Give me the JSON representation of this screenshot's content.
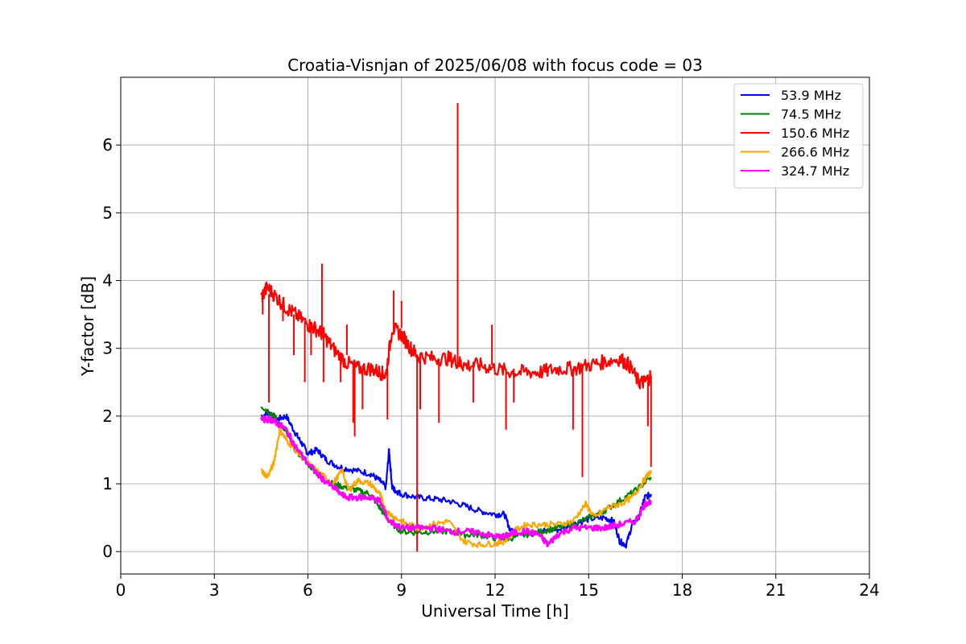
{
  "chart_data": {
    "type": "line",
    "title": "Croatia-Visnjan of 2025/06/08 with focus code = 03",
    "xlabel": "Universal Time [h]",
    "ylabel": "Y-factor [dB]",
    "xlim": [
      0,
      24
    ],
    "ylim": [
      -0.33,
      7.0
    ],
    "xticks": [
      0,
      3,
      6,
      9,
      12,
      15,
      18,
      21,
      24
    ],
    "yticks": [
      0,
      1,
      2,
      3,
      4,
      5,
      6
    ],
    "grid": true,
    "legend_position": "top-right",
    "series": [
      {
        "name": " 53.9 MHz",
        "color": "#0000ff",
        "x": [
          4.5,
          4.8,
          5.0,
          5.3,
          5.6,
          5.8,
          6.0,
          6.3,
          6.6,
          7.0,
          7.5,
          8.0,
          8.3,
          8.5,
          8.6,
          8.7,
          8.8,
          9.0,
          9.5,
          10.0,
          10.5,
          11.0,
          11.5,
          12.0,
          12.3,
          12.5,
          13.0,
          13.5,
          14.0,
          14.5,
          15.0,
          15.5,
          15.8,
          16.0,
          16.2,
          16.4,
          16.6,
          16.8,
          17.0
        ],
        "y": [
          2.0,
          2.05,
          1.95,
          2.0,
          1.75,
          1.6,
          1.45,
          1.5,
          1.35,
          1.25,
          1.2,
          1.15,
          1.05,
          0.95,
          1.5,
          0.95,
          0.9,
          0.85,
          0.8,
          0.78,
          0.75,
          0.68,
          0.6,
          0.55,
          0.55,
          0.3,
          0.28,
          0.3,
          0.32,
          0.4,
          0.48,
          0.5,
          0.45,
          0.15,
          0.1,
          0.4,
          0.5,
          0.8,
          0.85
        ]
      },
      {
        "name": " 74.5 MHz",
        "color": "#008000",
        "x": [
          4.5,
          4.8,
          5.0,
          5.3,
          5.6,
          6.0,
          6.4,
          6.8,
          7.2,
          7.6,
          8.0,
          8.3,
          8.6,
          9.0,
          9.5,
          10.0,
          10.5,
          11.0,
          11.5,
          12.0,
          12.5,
          13.0,
          13.5,
          14.0,
          14.5,
          15.0,
          15.5,
          16.0,
          16.5,
          17.0
        ],
        "y": [
          2.15,
          2.05,
          1.95,
          1.75,
          1.5,
          1.3,
          1.1,
          1.0,
          0.95,
          0.9,
          0.85,
          0.65,
          0.45,
          0.3,
          0.28,
          0.3,
          0.3,
          0.25,
          0.25,
          0.2,
          0.2,
          0.25,
          0.3,
          0.35,
          0.4,
          0.5,
          0.6,
          0.75,
          0.9,
          1.1
        ]
      },
      {
        "name": " 150.6 MHz",
        "color": "#ff0000",
        "x": [
          4.5,
          4.7,
          5.0,
          5.3,
          5.6,
          6.0,
          6.2,
          6.5,
          6.8,
          7.2,
          7.6,
          8.0,
          8.3,
          8.5,
          8.7,
          9.0,
          9.3,
          9.5,
          10.0,
          10.5,
          10.8,
          11.0,
          11.5,
          12.0,
          12.5,
          13.0,
          13.5,
          14.0,
          14.5,
          15.0,
          15.5,
          16.0,
          16.3,
          16.6,
          16.8,
          17.0
        ],
        "y": [
          3.75,
          3.9,
          3.75,
          3.6,
          3.5,
          3.35,
          3.3,
          3.2,
          3.0,
          2.8,
          2.7,
          2.7,
          2.65,
          2.6,
          3.3,
          3.2,
          3.0,
          2.9,
          2.85,
          2.85,
          2.8,
          2.75,
          2.75,
          2.7,
          2.65,
          2.65,
          2.65,
          2.7,
          2.7,
          2.75,
          2.8,
          2.85,
          2.75,
          2.5,
          2.5,
          2.6
        ],
        "spikes": [
          {
            "x": 4.55,
            "y_from": 3.7,
            "y_to": 3.5
          },
          {
            "x": 4.75,
            "y_from": 3.8,
            "y_to": 2.2
          },
          {
            "x": 5.2,
            "y_from": 3.7,
            "y_to": 3.4
          },
          {
            "x": 5.55,
            "y_from": 3.5,
            "y_to": 2.9
          },
          {
            "x": 5.9,
            "y_from": 3.4,
            "y_to": 2.5
          },
          {
            "x": 6.1,
            "y_from": 3.3,
            "y_to": 2.9
          },
          {
            "x": 6.45,
            "y_from": 3.2,
            "y_to": 4.25
          },
          {
            "x": 6.5,
            "y_from": 3.2,
            "y_to": 2.5
          },
          {
            "x": 7.05,
            "y_from": 2.9,
            "y_to": 2.5
          },
          {
            "x": 7.25,
            "y_from": 2.9,
            "y_to": 3.35
          },
          {
            "x": 7.45,
            "y_from": 2.8,
            "y_to": 1.9
          },
          {
            "x": 7.5,
            "y_from": 2.8,
            "y_to": 1.7
          },
          {
            "x": 7.75,
            "y_from": 2.7,
            "y_to": 2.1
          },
          {
            "x": 8.55,
            "y_from": 2.7,
            "y_to": 1.95
          },
          {
            "x": 8.75,
            "y_from": 3.2,
            "y_to": 3.85
          },
          {
            "x": 9.0,
            "y_from": 3.3,
            "y_to": 3.7
          },
          {
            "x": 9.5,
            "y_from": 2.9,
            "y_to": 0.0
          },
          {
            "x": 9.6,
            "y_from": 2.9,
            "y_to": 2.1
          },
          {
            "x": 10.2,
            "y_from": 2.85,
            "y_to": 1.9
          },
          {
            "x": 10.8,
            "y_from": 2.8,
            "y_to": 6.62
          },
          {
            "x": 11.3,
            "y_from": 2.8,
            "y_to": 2.2
          },
          {
            "x": 11.9,
            "y_from": 2.75,
            "y_to": 3.35
          },
          {
            "x": 12.35,
            "y_from": 2.7,
            "y_to": 1.8
          },
          {
            "x": 12.6,
            "y_from": 2.7,
            "y_to": 2.2
          },
          {
            "x": 14.5,
            "y_from": 2.7,
            "y_to": 1.8
          },
          {
            "x": 14.8,
            "y_from": 2.7,
            "y_to": 1.1
          },
          {
            "x": 16.9,
            "y_from": 2.5,
            "y_to": 1.85
          },
          {
            "x": 17.0,
            "y_from": 2.6,
            "y_to": 1.25
          }
        ]
      },
      {
        "name": " 266.6 MHz",
        "color": "#ffa500",
        "x": [
          4.5,
          4.7,
          4.9,
          5.1,
          5.3,
          5.6,
          6.0,
          6.4,
          6.8,
          7.1,
          7.3,
          7.6,
          8.0,
          8.3,
          8.5,
          8.8,
          9.2,
          9.6,
          10.0,
          10.5,
          11.0,
          11.5,
          12.0,
          12.3,
          12.6,
          13.0,
          13.5,
          14.0,
          14.5,
          14.9,
          15.2,
          15.6,
          16.0,
          16.4,
          16.7,
          17.0
        ],
        "y": [
          1.2,
          1.1,
          1.3,
          1.8,
          1.65,
          1.5,
          1.3,
          1.15,
          1.0,
          1.2,
          0.9,
          1.05,
          1.0,
          0.85,
          0.6,
          0.5,
          0.4,
          0.35,
          0.4,
          0.45,
          0.15,
          0.1,
          0.12,
          0.15,
          0.3,
          0.4,
          0.4,
          0.4,
          0.45,
          0.7,
          0.5,
          0.65,
          0.7,
          0.8,
          1.0,
          1.2
        ]
      },
      {
        "name": " 324.7 MHz",
        "color": "#ff00ff",
        "x": [
          4.5,
          4.8,
          5.0,
          5.3,
          5.6,
          6.0,
          6.4,
          6.8,
          7.2,
          7.6,
          8.0,
          8.3,
          8.6,
          9.0,
          9.5,
          10.0,
          10.5,
          11.0,
          11.5,
          12.0,
          12.3,
          12.6,
          13.0,
          13.4,
          13.7,
          14.0,
          14.5,
          15.0,
          15.5,
          16.0,
          16.5,
          16.8,
          17.0
        ],
        "y": [
          1.95,
          1.95,
          1.9,
          1.8,
          1.55,
          1.3,
          1.1,
          0.95,
          0.8,
          0.8,
          0.8,
          0.75,
          0.45,
          0.35,
          0.35,
          0.35,
          0.3,
          0.3,
          0.28,
          0.22,
          0.22,
          0.28,
          0.3,
          0.25,
          0.1,
          0.25,
          0.35,
          0.35,
          0.35,
          0.4,
          0.45,
          0.7,
          0.75
        ]
      }
    ]
  }
}
